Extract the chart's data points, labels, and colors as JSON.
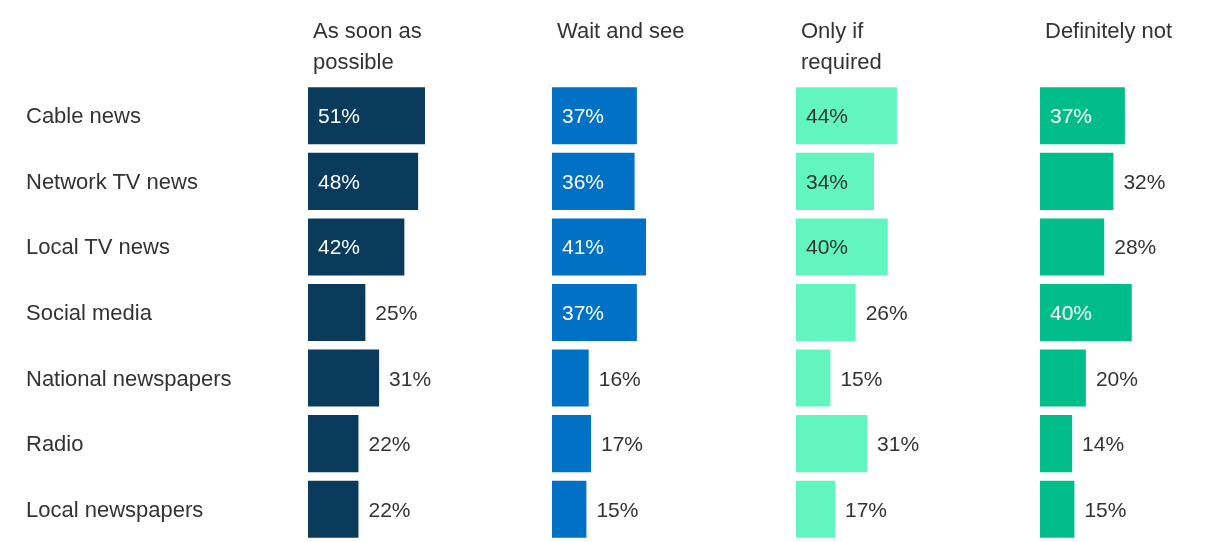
{
  "chart_data": [
    {
      "type": "bar",
      "orientation": "horizontal",
      "title": "As soon as\npossible",
      "categories": [
        "Cable news",
        "Network TV news",
        "Local TV news",
        "Social media",
        "National newspapers",
        "Radio",
        "Local newspapers"
      ],
      "values": [
        51,
        48,
        42,
        25,
        31,
        22,
        22
      ],
      "value_labels": [
        "51%",
        "48%",
        "42%",
        "25%",
        "31%",
        "22%",
        "22%"
      ],
      "color": "#0a3a5c",
      "tick_labels": "y"
    },
    {
      "type": "bar",
      "orientation": "horizontal",
      "title": "Wait and see",
      "values": [
        37,
        36,
        41,
        37,
        16,
        17,
        15
      ],
      "value_labels": [
        "37%",
        "36%",
        "41%",
        "37%",
        "16%",
        "17%",
        "15%"
      ],
      "color": "#0071c5",
      "tick_labels": false
    },
    {
      "type": "bar",
      "orientation": "horizontal",
      "title": "Only if\nrequired",
      "values": [
        44,
        34,
        40,
        26,
        15,
        31,
        17
      ],
      "value_labels": [
        "44%",
        "34%",
        "40%",
        "26%",
        "15%",
        "31%",
        "17%"
      ],
      "color": "#62f5c0",
      "tick_labels": false
    },
    {
      "type": "bar",
      "orientation": "horizontal",
      "title": "Definitely not",
      "values": [
        37,
        32,
        28,
        40,
        20,
        14,
        15
      ],
      "value_labels": [
        "37%",
        "32%",
        "28%",
        "40%",
        "20%",
        "14%",
        "15%"
      ],
      "color": "#00bd8a",
      "tick_labels": false
    }
  ]
}
